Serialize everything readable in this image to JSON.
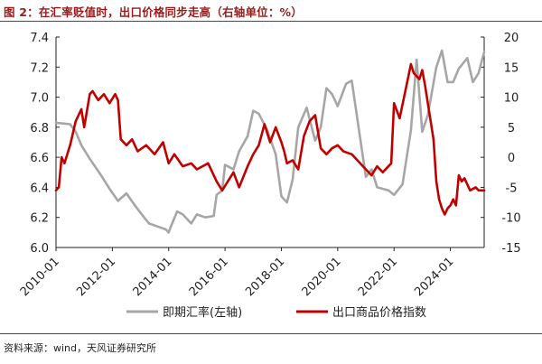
{
  "title": "图 2：在汇率贬值时，出口价格同步走高（右轴单位：%）",
  "source": "资料来源：wind，天风证券研究所",
  "chart_data": {
    "type": "line",
    "x_ticks": [
      "2010-01",
      "2012-01",
      "2014-01",
      "2016-01",
      "2018-01",
      "2020-01",
      "2022-01",
      "2024-01"
    ],
    "x_range": [
      2010.0,
      2025.2
    ],
    "y_left": {
      "range": [
        6.0,
        7.4
      ],
      "ticks": [
        "6.0",
        "6.2",
        "6.4",
        "6.6",
        "6.8",
        "7.0",
        "7.2",
        "7.4"
      ]
    },
    "y_right": {
      "range": [
        -15,
        20
      ],
      "ticks": [
        "-15",
        "-10",
        "-5",
        "0",
        "5",
        "10",
        "15",
        "20"
      ]
    },
    "grid": false,
    "legend_position": "bottom",
    "series": [
      {
        "name": "即期汇率(左轴)",
        "axis": "left",
        "color": "#a6a6a6",
        "points": [
          [
            2010.0,
            6.83
          ],
          [
            2010.5,
            6.82
          ],
          [
            2010.7,
            6.77
          ],
          [
            2010.9,
            6.68
          ],
          [
            2011.2,
            6.59
          ],
          [
            2011.6,
            6.48
          ],
          [
            2011.9,
            6.39
          ],
          [
            2012.2,
            6.31
          ],
          [
            2012.5,
            6.36
          ],
          [
            2012.8,
            6.28
          ],
          [
            2013.0,
            6.23
          ],
          [
            2013.3,
            6.16
          ],
          [
            2013.6,
            6.14
          ],
          [
            2013.9,
            6.12
          ],
          [
            2014.0,
            6.1
          ],
          [
            2014.1,
            6.15
          ],
          [
            2014.3,
            6.24
          ],
          [
            2014.5,
            6.22
          ],
          [
            2014.8,
            6.16
          ],
          [
            2015.0,
            6.22
          ],
          [
            2015.3,
            6.2
          ],
          [
            2015.6,
            6.21
          ],
          [
            2015.7,
            6.35
          ],
          [
            2015.9,
            6.38
          ],
          [
            2016.0,
            6.55
          ],
          [
            2016.3,
            6.52
          ],
          [
            2016.5,
            6.64
          ],
          [
            2016.8,
            6.74
          ],
          [
            2017.0,
            6.91
          ],
          [
            2017.2,
            6.89
          ],
          [
            2017.5,
            6.78
          ],
          [
            2017.8,
            6.62
          ],
          [
            2018.0,
            6.34
          ],
          [
            2018.2,
            6.3
          ],
          [
            2018.4,
            6.45
          ],
          [
            2018.6,
            6.8
          ],
          [
            2018.9,
            6.93
          ],
          [
            2019.2,
            6.71
          ],
          [
            2019.4,
            6.8
          ],
          [
            2019.6,
            7.06
          ],
          [
            2019.8,
            7.02
          ],
          [
            2020.0,
            6.94
          ],
          [
            2020.3,
            7.09
          ],
          [
            2020.5,
            7.11
          ],
          [
            2020.7,
            6.85
          ],
          [
            2021.0,
            6.47
          ],
          [
            2021.2,
            6.52
          ],
          [
            2021.4,
            6.4
          ],
          [
            2021.8,
            6.38
          ],
          [
            2022.0,
            6.35
          ],
          [
            2022.3,
            6.42
          ],
          [
            2022.6,
            6.78
          ],
          [
            2022.8,
            7.25
          ],
          [
            2023.0,
            6.77
          ],
          [
            2023.2,
            6.88
          ],
          [
            2023.5,
            7.2
          ],
          [
            2023.7,
            7.31
          ],
          [
            2023.9,
            7.1
          ],
          [
            2024.1,
            7.1
          ],
          [
            2024.3,
            7.19
          ],
          [
            2024.6,
            7.26
          ],
          [
            2024.8,
            7.1
          ],
          [
            2025.0,
            7.16
          ],
          [
            2025.2,
            7.3
          ]
        ]
      },
      {
        "name": "出口商品价格指数",
        "axis": "right",
        "color": "#c00000",
        "points": [
          [
            2010.0,
            -5.5
          ],
          [
            2010.1,
            -5.0
          ],
          [
            2010.2,
            0.0
          ],
          [
            2010.3,
            -1.0
          ],
          [
            2010.5,
            2.0
          ],
          [
            2010.7,
            6.0
          ],
          [
            2010.9,
            8.0
          ],
          [
            2011.0,
            5.0
          ],
          [
            2011.2,
            10.5
          ],
          [
            2011.3,
            11.0
          ],
          [
            2011.5,
            9.5
          ],
          [
            2011.7,
            10.5
          ],
          [
            2011.9,
            9.0
          ],
          [
            2012.1,
            10.5
          ],
          [
            2012.2,
            9.5
          ],
          [
            2012.3,
            3.0
          ],
          [
            2012.5,
            2.0
          ],
          [
            2012.7,
            3.0
          ],
          [
            2012.9,
            1.0
          ],
          [
            2013.2,
            2.0
          ],
          [
            2013.5,
            0.5
          ],
          [
            2013.8,
            2.5
          ],
          [
            2014.0,
            -1.0
          ],
          [
            2014.2,
            0.5
          ],
          [
            2014.5,
            -1.5
          ],
          [
            2014.8,
            -1.0
          ],
          [
            2015.0,
            -2.0
          ],
          [
            2015.2,
            -1.5
          ],
          [
            2015.4,
            -1.0
          ],
          [
            2015.7,
            -4.0
          ],
          [
            2015.9,
            -5.5
          ],
          [
            2016.1,
            -4.0
          ],
          [
            2016.3,
            -2.5
          ],
          [
            2016.5,
            -5.0
          ],
          [
            2016.8,
            -1.5
          ],
          [
            2017.0,
            0.5
          ],
          [
            2017.2,
            2.0
          ],
          [
            2017.4,
            5.5
          ],
          [
            2017.6,
            2.5
          ],
          [
            2017.8,
            5.0
          ],
          [
            2018.0,
            2.5
          ],
          [
            2018.1,
            1.0
          ],
          [
            2018.2,
            -1.0
          ],
          [
            2018.4,
            -0.5
          ],
          [
            2018.6,
            -2.0
          ],
          [
            2018.8,
            3.5
          ],
          [
            2019.0,
            6.0
          ],
          [
            2019.2,
            7.0
          ],
          [
            2019.4,
            1.5
          ],
          [
            2019.6,
            0.5
          ],
          [
            2019.8,
            1.5
          ],
          [
            2020.0,
            2.0
          ],
          [
            2020.2,
            1.0
          ],
          [
            2020.5,
            0.5
          ],
          [
            2020.7,
            -0.5
          ],
          [
            2021.0,
            -2.0
          ],
          [
            2021.2,
            -3.0
          ],
          [
            2021.4,
            -1.5
          ],
          [
            2021.6,
            -2.5
          ],
          [
            2021.9,
            -1.0
          ],
          [
            2022.0,
            9.0
          ],
          [
            2022.2,
            6.5
          ],
          [
            2022.4,
            11.0
          ],
          [
            2022.6,
            15.5
          ],
          [
            2022.7,
            14.0
          ],
          [
            2022.8,
            13.5
          ],
          [
            2022.9,
            13.0
          ],
          [
            2023.0,
            14.5
          ],
          [
            2023.1,
            12.0
          ],
          [
            2023.2,
            9.0
          ],
          [
            2023.4,
            3.0
          ],
          [
            2023.5,
            -4.0
          ],
          [
            2023.6,
            -7.0
          ],
          [
            2023.7,
            -8.5
          ],
          [
            2023.8,
            -9.5
          ],
          [
            2023.9,
            -8.5
          ],
          [
            2024.0,
            -8.0
          ],
          [
            2024.1,
            -7.0
          ],
          [
            2024.2,
            -8.0
          ],
          [
            2024.3,
            -3.0
          ],
          [
            2024.4,
            -4.0
          ],
          [
            2024.5,
            -3.5
          ],
          [
            2024.7,
            -5.5
          ],
          [
            2024.9,
            -5.0
          ],
          [
            2025.0,
            -5.5
          ],
          [
            2025.2,
            -5.5
          ]
        ]
      }
    ]
  }
}
